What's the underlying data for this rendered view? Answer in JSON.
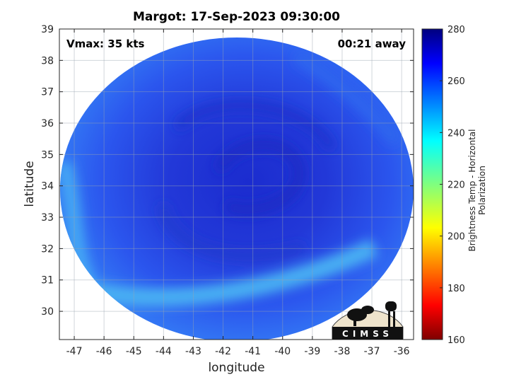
{
  "title": "Margot: 17-Sep-2023 09:30:00",
  "annotations": {
    "vmax": "Vmax: 35 kts",
    "time_away": "00:21 away"
  },
  "logo": {
    "text": "CIMSS"
  },
  "colors": {
    "ocean_low": "#3f8ff5",
    "ocean_mid": "#2a5cf0",
    "core": "#1c35d6"
  },
  "chart_data": {
    "type": "heatmap",
    "xlabel": "longitude",
    "ylabel": "latitude",
    "xlim": [
      -47.5,
      -35.6
    ],
    "ylim": [
      29.1,
      39
    ],
    "xticks": [
      -47,
      -46,
      -45,
      -44,
      -43,
      -42,
      -41,
      -40,
      -39,
      -38,
      -37,
      -36
    ],
    "yticks": [
      30,
      31,
      32,
      33,
      34,
      35,
      36,
      37,
      38,
      39
    ],
    "grid": true,
    "storm_center": {
      "lon": -41.3,
      "lat": 34.4
    },
    "colorbar": {
      "label": "Brightness Temp - Horizontal Polarization",
      "range": [
        160,
        280
      ],
      "ticks": [
        160,
        180,
        200,
        220,
        240,
        260,
        280
      ],
      "colormap": "jet"
    }
  }
}
